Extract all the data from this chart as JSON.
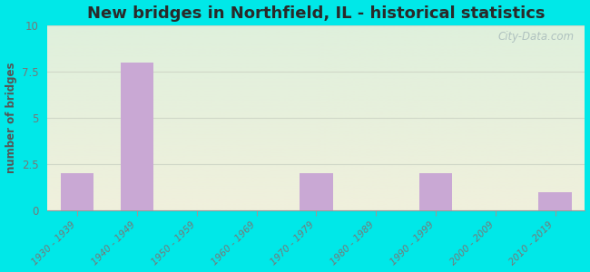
{
  "title": "New bridges in Northfield, IL - historical statistics",
  "categories": [
    "1930 - 1939",
    "1940 - 1949",
    "1950 - 1959",
    "1960 - 1969",
    "1970 - 1979",
    "1980 - 1989",
    "1990 - 1999",
    "2000 - 2009",
    "2010 - 2019"
  ],
  "values": [
    2,
    8,
    0,
    0,
    2,
    0,
    2,
    0,
    1
  ],
  "bar_color": "#c9a8d4",
  "ylim": [
    0,
    10
  ],
  "yticks": [
    0,
    2.5,
    5,
    7.5,
    10
  ],
  "ylabel": "number of bridges",
  "background_outer": "#00e8e8",
  "background_inner_top": "#dff0dc",
  "background_inner_bottom": "#f0f0dc",
  "grid_color": "#d0d8c8",
  "title_color": "#2a2a2a",
  "title_fontsize": 13,
  "axis_label_color": "#555555",
  "tick_label_color": "#777777",
  "watermark_text": "City-Data.com",
  "watermark_color": "#aabcbc"
}
